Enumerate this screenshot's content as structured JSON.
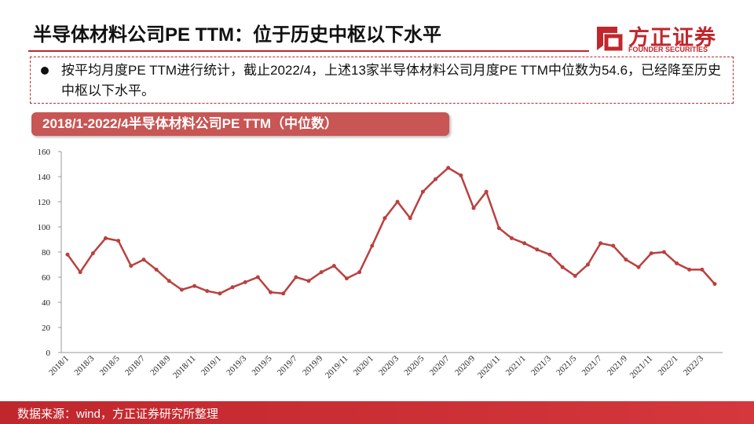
{
  "header": {
    "title": "半导体材料公司PE TTM：位于历史中枢以下水平"
  },
  "logo": {
    "name": "方正证券",
    "en": "FOUNDER SECURITIES"
  },
  "bullet": {
    "text": "按平均月度PE TTM进行统计，截止2022/4，上述13家半导体材料公司月度PE  TTM中位数为54.6，已经降至历史中枢以下水平。"
  },
  "chart_data": {
    "type": "line",
    "title": "2018/1-2022/4半导体材料公司PE  TTM（中位数）",
    "categories": [
      "2018/1",
      null,
      "2018/3",
      null,
      "2018/5",
      null,
      "2018/7",
      null,
      "2018/9",
      null,
      "2018/11",
      null,
      "2019/1",
      null,
      "2019/3",
      null,
      "2019/5",
      null,
      "2019/7",
      null,
      "2019/9",
      null,
      "2019/11",
      null,
      "2020/1",
      null,
      "2020/3",
      null,
      "2020/5",
      null,
      "2020/7",
      null,
      "2020/9",
      null,
      "2020/11",
      null,
      "2021/1",
      null,
      "2021/3",
      null,
      "2021/5",
      null,
      "2021/7",
      null,
      "2021/9",
      null,
      "2021/11",
      null,
      "2022/1",
      null,
      "2022/3",
      null
    ],
    "values": [
      78,
      64,
      79,
      91,
      89,
      69,
      74,
      66,
      57,
      50,
      53,
      49,
      47,
      52,
      56,
      60,
      48,
      47,
      60,
      57,
      64,
      69,
      59,
      64,
      85,
      107,
      120,
      107,
      128,
      138,
      147,
      141,
      115,
      128,
      99,
      91,
      87,
      82,
      78,
      68,
      61,
      70,
      87,
      85,
      74,
      68,
      79,
      80,
      71,
      66,
      66,
      54.6
    ],
    "color": "#b9413f",
    "ylim": [
      0,
      160
    ],
    "yticks": [
      0,
      20,
      40,
      60,
      80,
      100,
      120,
      140,
      160
    ]
  },
  "footer": {
    "source": "数据来源：wind，方正证券研究所整理"
  }
}
